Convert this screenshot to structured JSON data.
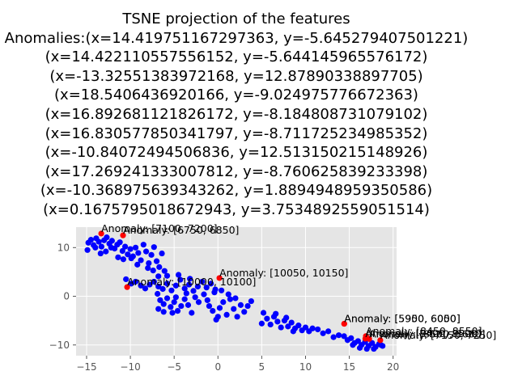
{
  "chart_data": {
    "type": "scatter",
    "title_lines": [
      "TSNE projection of the features",
      "Anomalies:(x=14.419751167297363, y=-5.645279407501221)",
      "(x=14.422110557556152, y=-5.644145965576172)",
      "(x=-13.32551383972168, y=12.87890338897705)",
      "(x=18.5406436920166, y=-9.024975776672363)",
      "(x=16.892681121826172, y=-8.184808731079102)",
      "(x=16.830577850341797, y=-8.711725234985352)",
      "(x=-10.84072494506836, y=12.51315021514892​6)",
      "(x=17.269241333007812, y=-8.760625839233398)",
      "(x=-10.368975639343262, y=1.8894948959350586)",
      "(x=0.1675795018672943, y=3.7534892559051514)"
    ],
    "xlim": [
      -16.2,
      20.4
    ],
    "ylim": [
      -12.2,
      14.2
    ],
    "xticks": [
      -15,
      -10,
      -5,
      0,
      5,
      10,
      15,
      20
    ],
    "yticks": [
      -10,
      0,
      10
    ],
    "grid": true,
    "colors": {
      "normal": "#0000ff",
      "anomaly": "#ff0000",
      "background": "#e5e5e5",
      "grid": "#ffffff"
    },
    "normal_points": [
      [
        -14.8,
        11.0
      ],
      [
        -14.5,
        11.6
      ],
      [
        -14.2,
        10.5
      ],
      [
        -13.9,
        11.9
      ],
      [
        -13.6,
        11.2
      ],
      [
        -13.3,
        10.2
      ],
      [
        -13.0,
        11.5
      ],
      [
        -12.7,
        12.1
      ],
      [
        -12.4,
        10.8
      ],
      [
        -12.1,
        11.4
      ],
      [
        -11.8,
        9.8
      ],
      [
        -11.5,
        10.6
      ],
      [
        -11.2,
        11.1
      ],
      [
        -10.9,
        9.3
      ],
      [
        -10.6,
        10.2
      ],
      [
        -10.3,
        8.6
      ],
      [
        -10.0,
        9.7
      ],
      [
        -9.7,
        8.2
      ],
      [
        -9.4,
        10.0
      ],
      [
        -9.1,
        8.9
      ],
      [
        -8.8,
        7.4
      ],
      [
        -8.5,
        10.6
      ],
      [
        -8.2,
        9.2
      ],
      [
        -7.9,
        6.8
      ],
      [
        -7.6,
        8.5
      ],
      [
        -7.3,
        10.1
      ],
      [
        -7.0,
        7.2
      ],
      [
        -6.7,
        6.0
      ],
      [
        -6.4,
        8.8
      ],
      [
        -6.1,
        5.2
      ],
      [
        -5.8,
        4.2
      ],
      [
        -14.9,
        9.5
      ],
      [
        -14.0,
        10.0
      ],
      [
        -13.4,
        8.8
      ],
      [
        -12.8,
        9.2
      ],
      [
        -12.2,
        10.0
      ],
      [
        -11.4,
        8.0
      ],
      [
        -10.8,
        7.6
      ],
      [
        -9.9,
        7.8
      ],
      [
        -9.2,
        6.5
      ],
      [
        -8.0,
        5.8
      ],
      [
        -7.4,
        5.3
      ],
      [
        -6.8,
        4.1
      ],
      [
        -10.5,
        3.5
      ],
      [
        -9.9,
        2.6
      ],
      [
        -9.4,
        3.0
      ],
      [
        -8.8,
        2.2
      ],
      [
        -8.3,
        1.6
      ],
      [
        -7.8,
        2.4
      ],
      [
        -7.3,
        3.0
      ],
      [
        -6.8,
        2.0
      ],
      [
        -6.3,
        1.5
      ],
      [
        -5.8,
        2.6
      ],
      [
        -5.3,
        1.2
      ],
      [
        -4.8,
        2.2
      ],
      [
        -4.3,
        3.4
      ],
      [
        -3.8,
        1.6
      ],
      [
        -3.3,
        2.4
      ],
      [
        -2.8,
        1.1
      ],
      [
        -2.3,
        2.0
      ],
      [
        -1.8,
        3.0
      ],
      [
        -1.3,
        1.8
      ],
      [
        -0.8,
        2.6
      ],
      [
        -0.3,
        1.4
      ],
      [
        -4.5,
        4.4
      ],
      [
        -3.2,
        3.6
      ],
      [
        -6.9,
        0.5
      ],
      [
        -6.6,
        -0.8
      ],
      [
        -6.2,
        -1.6
      ],
      [
        -5.8,
        -0.4
      ],
      [
        -5.4,
        -2.2
      ],
      [
        -5.0,
        -1.2
      ],
      [
        -4.6,
        -3.0
      ],
      [
        -4.2,
        -2.0
      ],
      [
        -3.8,
        -0.6
      ],
      [
        -3.4,
        -1.8
      ],
      [
        -3.0,
        -3.4
      ],
      [
        -2.6,
        -0.2
      ],
      [
        -6.8,
        -2.6
      ],
      [
        -6.2,
        -3.2
      ],
      [
        -5.2,
        -3.4
      ],
      [
        -4.8,
        -0.2
      ],
      [
        -3.6,
        0.6
      ],
      [
        -2.2,
        -1.2
      ],
      [
        -1.6,
        0.4
      ],
      [
        -1.0,
        -2.0
      ],
      [
        -0.6,
        -3.0
      ],
      [
        -0.2,
        -4.8
      ],
      [
        0.2,
        -2.4
      ],
      [
        0.6,
        -1.2
      ],
      [
        1.0,
        -3.8
      ],
      [
        1.4,
        -0.6
      ],
      [
        1.8,
        -2.6
      ],
      [
        2.2,
        -4.2
      ],
      [
        2.6,
        -1.8
      ],
      [
        3.0,
        -3.2
      ],
      [
        3.4,
        -2.0
      ],
      [
        3.8,
        -1.0
      ],
      [
        -0.4,
        0.8
      ],
      [
        -1.2,
        -0.8
      ],
      [
        0.4,
        1.2
      ],
      [
        1.2,
        0.4
      ],
      [
        2.0,
        -0.4
      ],
      [
        0.0,
        -4.2
      ],
      [
        5.2,
        -3.4
      ],
      [
        5.6,
        -4.6
      ],
      [
        6.0,
        -5.8
      ],
      [
        6.4,
        -4.2
      ],
      [
        6.8,
        -5.2
      ],
      [
        7.2,
        -6.4
      ],
      [
        7.6,
        -5.0
      ],
      [
        8.0,
        -6.2
      ],
      [
        8.4,
        -5.4
      ],
      [
        8.8,
        -6.6
      ],
      [
        9.2,
        -6.0
      ],
      [
        9.6,
        -7.0
      ],
      [
        10.0,
        -6.4
      ],
      [
        10.4,
        -7.2
      ],
      [
        10.8,
        -6.6
      ],
      [
        11.4,
        -6.8
      ],
      [
        12.0,
        -7.6
      ],
      [
        12.6,
        -7.2
      ],
      [
        13.2,
        -8.4
      ],
      [
        13.8,
        -8.0
      ],
      [
        14.4,
        -8.2
      ],
      [
        14.8,
        -9.0
      ],
      [
        15.2,
        -8.6
      ],
      [
        15.6,
        -9.6
      ],
      [
        16.0,
        -9.2
      ],
      [
        16.4,
        -10.0
      ],
      [
        16.8,
        -9.4
      ],
      [
        17.2,
        -10.2
      ],
      [
        17.6,
        -9.6
      ],
      [
        18.0,
        -10.4
      ],
      [
        18.4,
        -9.8
      ],
      [
        18.8,
        -10.2
      ],
      [
        15.4,
        -10.0
      ],
      [
        16.2,
        -10.6
      ],
      [
        17.0,
        -10.8
      ],
      [
        6.6,
        -3.6
      ],
      [
        7.8,
        -4.4
      ],
      [
        5.0,
        -5.6
      ],
      [
        8.6,
        -7.2
      ],
      [
        17.8,
        -10.8
      ],
      [
        18.6,
        -10.0
      ]
    ],
    "anomalies": [
      {
        "x": 14.419751167297363,
        "y": -5.645279407501221,
        "label": "Anomaly: [5900, 6000]"
      },
      {
        "x": 14.422110557556152,
        "y": -5.644145965576172,
        "label": "Anomaly: [5950, 6050]"
      },
      {
        "x": -13.32551383972168,
        "y": 12.87890338897705,
        "label": "Anomaly: [7100, 7200]"
      },
      {
        "x": 18.5406436920166,
        "y": -9.024975776672363,
        "label": "Anomaly: [7150, 7250]"
      },
      {
        "x": 16.892681121826172,
        "y": -8.184808731079102,
        "label": "Anomaly: [8450, 8550]"
      },
      {
        "x": 16.830577850341797,
        "y": -8.711725234985352,
        "label": "Anomaly: [8400, 8500]"
      },
      {
        "x": -10.84072494506836,
        "y": 12.513150215148926,
        "label": "Anomaly: [6750, 6850]"
      },
      {
        "x": 17.269241333007812,
        "y": -8.760625839233398,
        "label": "Anomaly: [8500, 8600]"
      },
      {
        "x": -10.368975639343262,
        "y": 1.8894948959350586,
        "label": "Anomaly: [10000, 10100]"
      },
      {
        "x": 0.1675795018672943,
        "y": 3.7534892559051514,
        "label": "Anomaly: [10050, 10150]"
      }
    ]
  }
}
